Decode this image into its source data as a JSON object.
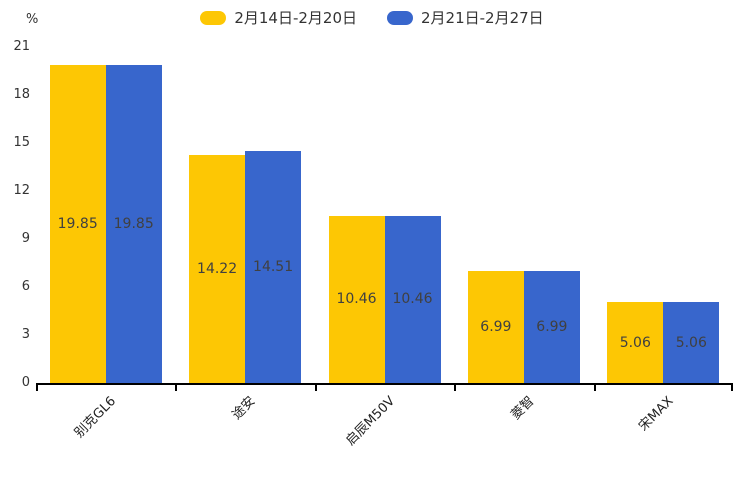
{
  "chart_data": {
    "type": "bar",
    "title": "",
    "categories": [
      "别克GL6",
      "途安",
      "启辰M50V",
      "菱智",
      "宋MAX"
    ],
    "series": [
      {
        "name": "2月14日-2月20日",
        "color": "#FDC704",
        "values": [
          19.85,
          14.22,
          10.46,
          6.99,
          5.06
        ]
      },
      {
        "name": "2月21日-2月27日",
        "color": "#3866CC",
        "values": [
          19.85,
          14.51,
          10.46,
          6.99,
          5.06
        ]
      }
    ],
    "value_labels": [
      [
        "19.85",
        "14.22",
        "10.46",
        "6.99",
        "5.06"
      ],
      [
        "19.85",
        "14.51",
        "10.46",
        "6.99",
        "5.06"
      ]
    ],
    "xlabel": "",
    "ylabel": "%",
    "ylim": [
      0,
      21
    ],
    "yticks": [
      0,
      3,
      6,
      9,
      12,
      15,
      18,
      21
    ],
    "grid": false,
    "legend_position": "top",
    "colors": {
      "axis": "#000000",
      "tick_text": "#333333",
      "value_label_text": "#404040",
      "background": "#ffffff"
    }
  }
}
